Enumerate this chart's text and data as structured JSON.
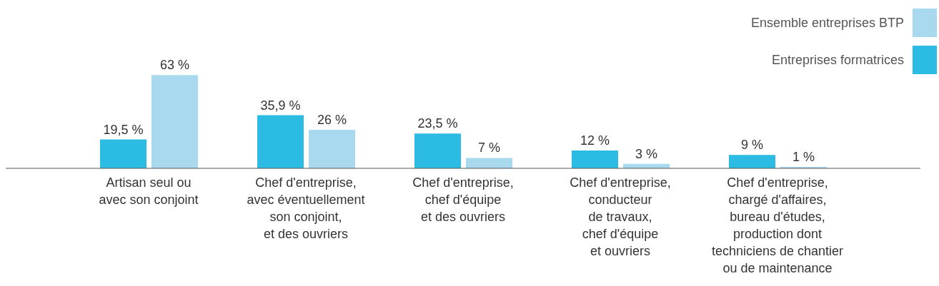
{
  "chart_data": {
    "type": "bar",
    "categories": [
      "Artisan seul ou\navec son conjoint",
      "Chef d'entreprise,\navec éventuellement\nson conjoint,\net des ouvriers",
      "Chef d'entreprise,\nchef d'équipe\net des ouvriers",
      "Chef d'entreprise,\nconducteur\nde travaux,\nchef d'équipe\net ouvriers",
      "Chef d'entreprise,\nchargé d'affaires,\nbureau d'études,\nproduction dont\ntechniciens de chantier\nou de maintenance"
    ],
    "series": [
      {
        "name": "Entreprises formatrices",
        "color": "#2bbbe3",
        "values": [
          19.5,
          35.9,
          23.5,
          12,
          9
        ],
        "value_labels": [
          "19,5 %",
          "35,9 %",
          "23,5 %",
          "12 %",
          "9 %"
        ]
      },
      {
        "name": "Ensemble entreprises BTP",
        "color": "#a9d9ef",
        "values": [
          63,
          26,
          7,
          3,
          1
        ],
        "value_labels": [
          "63 %",
          "26 %",
          "7 %",
          "3 %",
          "1 %"
        ]
      }
    ],
    "tick_labels": "x",
    "legend": "top right",
    "grid": false
  }
}
